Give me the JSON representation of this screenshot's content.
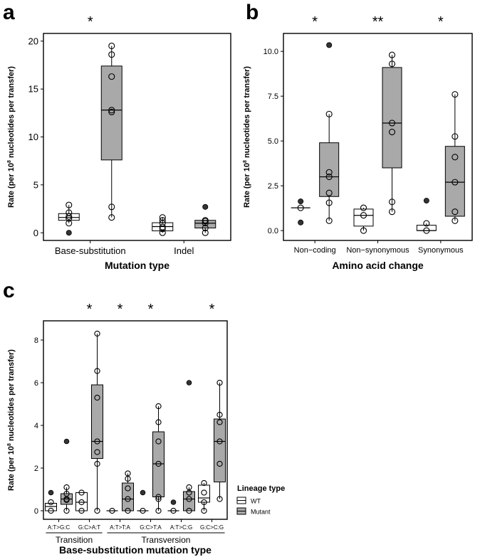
{
  "colors": {
    "wt": "#ffffff",
    "mutant": "#a9a9a9",
    "outlier": "#333333",
    "axis": "#000000"
  },
  "chart_data": [
    {
      "panel": "a",
      "type": "box",
      "xlabel": "Mutation type",
      "ylabel_pre": "Rate (per 10",
      "ylabel_sup": "8",
      "ylabel_post": " nucleotides per transfer)",
      "ylim": [
        -0.8,
        20.8
      ],
      "yticks": [
        0,
        5,
        10,
        15,
        20
      ],
      "ytick_labels": [
        "0",
        "5",
        "10",
        "15",
        "20"
      ],
      "categories": [
        "Base-substitution",
        "Indel"
      ],
      "significance": [
        {
          "category": "Base-substitution",
          "label": "*"
        }
      ],
      "series": [
        {
          "name": "WT",
          "boxes": [
            {
              "min": 1.0,
              "q1": 1.3,
              "median": 1.6,
              "q3": 2.0,
              "max": 2.9,
              "points": [
                1.0,
                1.5,
                1.7,
                2.1,
                2.9
              ],
              "outliers": [
                0.0
              ]
            },
            {
              "min": 0.0,
              "q1": 0.2,
              "median": 0.65,
              "q3": 1.05,
              "max": 1.6,
              "points": [
                0.0,
                0.4,
                0.6,
                1.0,
                1.3,
                1.6
              ],
              "outliers": []
            }
          ]
        },
        {
          "name": "Mutant",
          "boxes": [
            {
              "min": 1.6,
              "q1": 7.6,
              "median": 12.8,
              "q3": 17.4,
              "max": 19.5,
              "points": [
                1.6,
                2.7,
                12.6,
                12.8,
                16.3,
                18.6,
                19.5
              ],
              "outliers": []
            },
            {
              "min": 0.0,
              "q1": 0.5,
              "median": 1.0,
              "q3": 1.3,
              "max": 1.3,
              "points": [
                0.0,
                0.5,
                1.0,
                1.2,
                1.3
              ],
              "outliers": [
                2.7
              ]
            }
          ]
        }
      ]
    },
    {
      "panel": "b",
      "type": "box",
      "xlabel": "Amino acid change",
      "ylabel_pre": "Rate (per 10",
      "ylabel_sup": "8",
      "ylabel_post": " nucleotides per transfer)",
      "ylim": [
        -0.55,
        11.0
      ],
      "yticks": [
        0,
        2.5,
        5,
        7.5,
        10
      ],
      "ytick_labels": [
        "0.0",
        "2.5",
        "5.0",
        "7.5",
        "10.0"
      ],
      "categories": [
        "Non−coding",
        "Non−synonymous",
        "Synonymous"
      ],
      "significance": [
        {
          "category": "Non−coding",
          "label": "*"
        },
        {
          "category": "Non−synonymous",
          "label": "**"
        },
        {
          "category": "Synonymous",
          "label": "*"
        }
      ],
      "series": [
        {
          "name": "WT",
          "boxes": [
            {
              "min": 1.27,
              "q1": 1.27,
              "median": 1.27,
              "q3": 1.27,
              "max": 1.27,
              "points": [
                1.27
              ],
              "outliers": [
                1.63,
                0.45
              ]
            },
            {
              "min": 0.0,
              "q1": 0.25,
              "median": 0.85,
              "q3": 1.2,
              "max": 1.27,
              "points": [
                0.0,
                0.85,
                1.27
              ],
              "outliers": []
            },
            {
              "min": 0.0,
              "q1": 0.0,
              "median": 0.0,
              "q3": 0.3,
              "max": 0.4,
              "points": [
                0.0,
                0.4
              ],
              "outliers": [
                1.67
              ]
            }
          ]
        },
        {
          "name": "Mutant",
          "boxes": [
            {
              "min": 0.55,
              "q1": 1.9,
              "median": 3.0,
              "q3": 4.9,
              "max": 6.5,
              "points": [
                0.55,
                1.55,
                2.1,
                3.0,
                3.25,
                6.5
              ],
              "outliers": [
                10.35
              ]
            },
            {
              "min": 1.05,
              "q1": 3.5,
              "median": 6.0,
              "q3": 9.1,
              "max": 9.8,
              "points": [
                1.05,
                1.6,
                5.5,
                6.0,
                9.3,
                9.8
              ],
              "outliers": []
            },
            {
              "min": 0.55,
              "q1": 0.8,
              "median": 2.7,
              "q3": 4.7,
              "max": 7.6,
              "points": [
                0.55,
                1.05,
                2.7,
                4.1,
                5.25,
                7.6
              ],
              "outliers": []
            }
          ]
        }
      ]
    },
    {
      "panel": "c",
      "type": "box",
      "xlabel": "Base-substitution mutation type",
      "ylabel_pre": "Rate (per 10",
      "ylabel_sup": "8",
      "ylabel_post": " nucleotides per transfer)",
      "ylim": [
        -0.4,
        8.9
      ],
      "yticks": [
        0,
        2,
        4,
        6,
        8
      ],
      "ytick_labels": [
        "0",
        "2",
        "4",
        "6",
        "8"
      ],
      "categories": [
        "A:T>G:C",
        "G:C>A:T",
        "A:T>T:A",
        "G:C>T:A",
        "A:T>C:G",
        "G:C>C:G"
      ],
      "groups": [
        {
          "label": "Transition",
          "from": 0,
          "to": 1
        },
        {
          "label": "Transversion",
          "from": 2,
          "to": 5
        }
      ],
      "significance": [
        {
          "category": "G:C>A:T",
          "label": "*"
        },
        {
          "category": "A:T>T:A",
          "label": "*"
        },
        {
          "category": "G:C>T:A",
          "label": "*"
        },
        {
          "category": "G:C>C:G",
          "label": "*"
        }
      ],
      "series": [
        {
          "name": "WT",
          "boxes": [
            {
              "min": 0.0,
              "q1": 0.0,
              "median": 0.2,
              "q3": 0.35,
              "max": 0.4,
              "points": [
                0.0,
                0.4
              ],
              "outliers": [
                0.85
              ]
            },
            {
              "min": 0.0,
              "q1": 0.0,
              "median": 0.4,
              "q3": 0.85,
              "max": 0.85,
              "points": [
                0.0,
                0.4,
                0.85
              ],
              "outliers": []
            },
            {
              "min": 0.0,
              "q1": 0.0,
              "median": 0.0,
              "q3": 0.0,
              "max": 0.0,
              "points": [
                0.0
              ],
              "outliers": []
            },
            {
              "min": 0.0,
              "q1": 0.0,
              "median": 0.0,
              "q3": 0.0,
              "max": 0.0,
              "points": [
                0.0
              ],
              "outliers": [
                0.85
              ]
            },
            {
              "min": 0.0,
              "q1": 0.0,
              "median": 0.0,
              "q3": 0.0,
              "max": 0.0,
              "points": [
                0.0
              ],
              "outliers": [
                0.4
              ]
            },
            {
              "min": 0.0,
              "q1": 0.4,
              "median": 0.6,
              "q3": 1.2,
              "max": 1.3,
              "points": [
                0.0,
                0.4,
                0.85,
                1.3
              ],
              "outliers": []
            }
          ]
        },
        {
          "name": "Mutant",
          "boxes": [
            {
              "min": 0.0,
              "q1": 0.3,
              "median": 0.55,
              "q3": 0.8,
              "max": 1.1,
              "points": [
                0.0,
                0.5,
                0.55,
                0.8,
                1.1
              ],
              "outliers": [
                3.25
              ]
            },
            {
              "min": 0.0,
              "q1": 2.45,
              "median": 3.25,
              "q3": 5.9,
              "max": 8.3,
              "points": [
                0.0,
                2.2,
                2.75,
                3.25,
                5.3,
                6.55,
                8.3
              ],
              "outliers": []
            },
            {
              "min": 0.0,
              "q1": 0.0,
              "median": 0.55,
              "q3": 1.3,
              "max": 1.75,
              "points": [
                0.0,
                0.55,
                1.05,
                1.5,
                1.75
              ],
              "outliers": []
            },
            {
              "min": 0.0,
              "q1": 0.65,
              "median": 2.2,
              "q3": 3.7,
              "max": 4.9,
              "points": [
                0.0,
                0.55,
                0.65,
                2.2,
                3.25,
                4.15,
                4.9
              ],
              "outliers": []
            },
            {
              "min": 0.0,
              "q1": 0.0,
              "median": 0.55,
              "q3": 0.9,
              "max": 1.1,
              "points": [
                0.0,
                0.55,
                0.85,
                1.1
              ],
              "outliers": [
                6.0
              ]
            },
            {
              "min": 0.55,
              "q1": 1.35,
              "median": 3.25,
              "q3": 4.3,
              "max": 6.0,
              "points": [
                0.55,
                2.2,
                3.25,
                4.15,
                4.5,
                6.0
              ],
              "outliers": []
            }
          ]
        }
      ],
      "legend": {
        "title": "Lineage type",
        "entries": [
          "WT",
          "Mutant"
        ],
        "position": "right"
      }
    }
  ]
}
